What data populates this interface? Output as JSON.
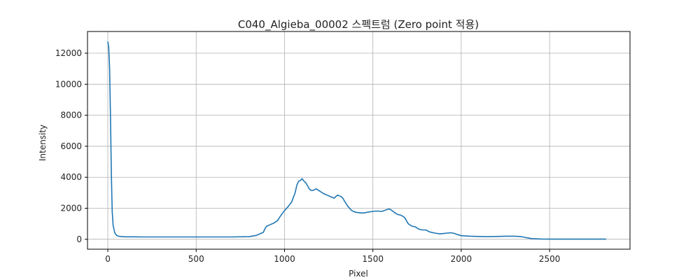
{
  "chart_data": {
    "type": "line",
    "title": "C040_Algieba_00002 스펙트럼 (Zero point 적용)",
    "xlabel": "Pixel",
    "ylabel": "Intensity",
    "xlim": [
      -115,
      2955
    ],
    "ylim": [
      -640,
      13400
    ],
    "xticks": [
      0,
      500,
      1000,
      1500,
      2000,
      2500
    ],
    "yticks": [
      0,
      2000,
      4000,
      6000,
      8000,
      10000,
      12000
    ],
    "grid": true,
    "line_color": "#1f77b4",
    "series": [
      {
        "x": [
          0,
          5,
          10,
          15,
          20,
          25,
          30,
          40,
          50,
          60,
          80,
          100,
          150,
          200,
          300,
          400,
          500,
          600,
          700,
          800,
          840,
          860,
          880,
          890,
          900,
          920,
          940,
          960,
          980,
          1000,
          1020,
          1040,
          1060,
          1070,
          1080,
          1090,
          1100,
          1110,
          1120,
          1130,
          1140,
          1150,
          1160,
          1180,
          1200,
          1220,
          1240,
          1260,
          1280,
          1290,
          1300,
          1310,
          1320,
          1330,
          1340,
          1360,
          1380,
          1400,
          1430,
          1450,
          1470,
          1500,
          1520,
          1550,
          1570,
          1590,
          1600,
          1620,
          1640,
          1660,
          1680,
          1700,
          1720,
          1740,
          1760,
          1780,
          1800,
          1820,
          1850,
          1880,
          1900,
          1920,
          1940,
          1960,
          1980,
          2000,
          2050,
          2100,
          2150,
          2200,
          2250,
          2300,
          2330,
          2350,
          2370,
          2400,
          2450,
          2500,
          2600,
          2700,
          2820
        ],
        "y": [
          12750,
          12400,
          11000,
          8000,
          4200,
          1800,
          900,
          400,
          250,
          200,
          170,
          160,
          160,
          150,
          150,
          150,
          150,
          150,
          150,
          170,
          250,
          350,
          450,
          700,
          850,
          950,
          1050,
          1200,
          1550,
          1850,
          2100,
          2400,
          3000,
          3500,
          3750,
          3800,
          3900,
          3750,
          3650,
          3450,
          3250,
          3150,
          3150,
          3250,
          3100,
          2950,
          2850,
          2750,
          2650,
          2750,
          2850,
          2800,
          2750,
          2650,
          2450,
          2100,
          1850,
          1750,
          1700,
          1700,
          1750,
          1800,
          1820,
          1800,
          1880,
          1950,
          1920,
          1750,
          1600,
          1550,
          1400,
          1000,
          850,
          800,
          650,
          600,
          600,
          480,
          400,
          350,
          370,
          400,
          420,
          380,
          300,
          230,
          200,
          180,
          170,
          180,
          200,
          200,
          180,
          150,
          100,
          40,
          20,
          10,
          10,
          10,
          10
        ]
      }
    ]
  }
}
